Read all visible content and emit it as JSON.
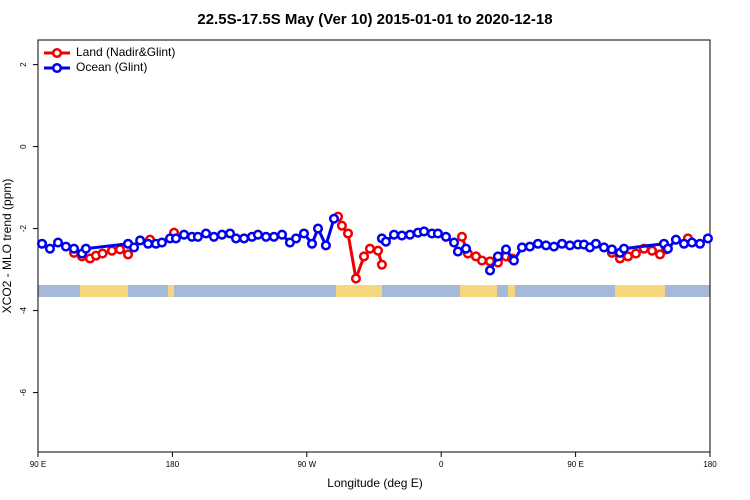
{
  "chart_data": {
    "type": "line",
    "title": "22.5S-17.5S May (Ver 10)   2015-01-01 to 2020-12-18",
    "x_label": "Longitude (deg E)",
    "y_label": "XCO2 - MLO trend (ppm)",
    "xlim": [
      90,
      540
    ],
    "ylim": [
      -7.45,
      2.6
    ],
    "xticks": [
      {
        "value": 90,
        "label": "90 E"
      },
      180,
      {
        "value": 270,
        "label": "90 W"
      },
      {
        "value": 360,
        "label": "0"
      },
      {
        "value": 450,
        "label": "90 E"
      },
      {
        "value": 540,
        "label": "180"
      }
    ],
    "yticks": [
      -6,
      -4,
      -2,
      0,
      2
    ],
    "legend": "top-left",
    "series": [
      {
        "name": "Land (Nadir&Glint)",
        "color": "#ee0000",
        "x": [
          114.1,
          119.5,
          124.8,
          128.8,
          133.2,
          139.5,
          144.9,
          150.3,
          null,
          165.0,
          null,
          181.1,
          null,
          290.9,
          293.5,
          297.6,
          302.9,
          308.3,
          312.3,
          317.7,
          320.3,
          null,
          373.9,
          377.9,
          383.3,
          387.3,
          392.7,
          398.0,
          403.4,
          407.4,
          null,
          474.3,
          479.7,
          485.1,
          490.4,
          495.8,
          501.2,
          506.5,
          510.5,
          null,
          525.2
        ],
        "values": [
          -2.59,
          -2.68,
          -2.73,
          -2.66,
          -2.61,
          -2.54,
          -2.51,
          -2.63,
          null,
          -2.27,
          null,
          -2.1,
          null,
          -1.71,
          -1.93,
          -2.12,
          -3.22,
          -2.68,
          -2.49,
          -2.54,
          -2.88,
          null,
          -2.2,
          -2.61,
          -2.68,
          -2.78,
          -2.8,
          -2.83,
          -2.68,
          -2.73,
          null,
          -2.59,
          -2.73,
          -2.68,
          -2.61,
          -2.49,
          -2.54,
          -2.63,
          -2.51,
          null,
          -2.24
        ]
      },
      {
        "name": "Ocean (Glint)",
        "color": "#0000ee",
        "x": [
          92.7,
          98.0,
          103.4,
          108.7,
          114.1,
          119.5,
          122.1,
          150.3,
          154.3,
          158.4,
          163.7,
          169.0,
          173.0,
          178.4,
          182.4,
          187.8,
          193.1,
          197.1,
          202.5,
          207.8,
          213.2,
          218.6,
          222.6,
          228.0,
          233.3,
          237.3,
          242.7,
          248.0,
          253.4,
          258.7,
          262.8,
          268.1,
          273.5,
          277.5,
          282.8,
          288.2,
          null,
          320.3,
          323.0,
          328.4,
          333.7,
          339.1,
          344.4,
          348.5,
          353.8,
          357.8,
          363.2,
          368.6,
          371.2,
          376.6,
          null,
          392.7,
          398.0,
          403.4,
          408.7,
          414.1,
          419.4,
          424.8,
          430.2,
          435.5,
          440.9,
          446.2,
          451.6,
          455.6,
          459.6,
          463.6,
          469.0,
          474.3,
          479.7,
          482.4,
          509.2,
          511.8,
          517.2,
          522.6,
          527.9,
          533.3,
          538.6
        ],
        "values": [
          -2.37,
          -2.49,
          -2.34,
          -2.44,
          -2.49,
          -2.61,
          -2.49,
          -2.37,
          -2.46,
          -2.29,
          -2.37,
          -2.37,
          -2.34,
          -2.24,
          -2.24,
          -2.15,
          -2.2,
          -2.2,
          -2.12,
          -2.2,
          -2.15,
          -2.12,
          -2.24,
          -2.24,
          -2.2,
          -2.15,
          -2.2,
          -2.2,
          -2.15,
          -2.34,
          -2.24,
          -2.12,
          -2.37,
          -2.0,
          -2.41,
          -1.76,
          null,
          -2.24,
          -2.32,
          -2.15,
          -2.17,
          -2.15,
          -2.1,
          -2.07,
          -2.12,
          -2.12,
          -2.2,
          -2.34,
          -2.56,
          -2.49,
          null,
          -3.02,
          -2.68,
          -2.51,
          -2.78,
          -2.46,
          -2.44,
          -2.37,
          -2.41,
          -2.44,
          -2.37,
          -2.41,
          -2.39,
          -2.39,
          -2.46,
          -2.37,
          -2.46,
          -2.51,
          -2.59,
          -2.49,
          -2.37,
          -2.49,
          -2.27,
          -2.37,
          -2.34,
          -2.37,
          -2.24
        ]
      }
    ]
  }
}
